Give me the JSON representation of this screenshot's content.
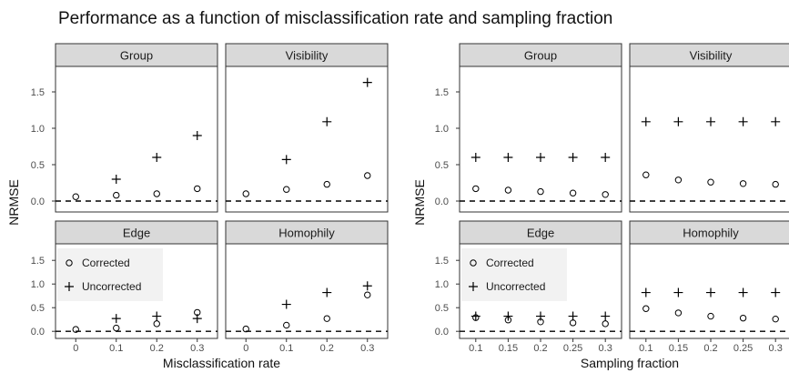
{
  "title": "Performance as a function of misclassification rate and sampling fraction",
  "chart_data": [
    {
      "type": "scatter",
      "xlabel": "Misclassification rate",
      "ylabel": "NRMSE",
      "x": [
        "0",
        "0.1",
        "0.2",
        "0.3"
      ],
      "ylim": [
        -0.15,
        1.85
      ],
      "yticks": [
        "0.0",
        "0.5",
        "1.0",
        "1.5"
      ],
      "reference_line": {
        "y": 0,
        "style": "dashed"
      },
      "grid": false,
      "legend": {
        "position": "inside Edge facet, top-left",
        "entries": [
          {
            "name": "Corrected",
            "marker": "circle"
          },
          {
            "name": "Uncorrected",
            "marker": "plus"
          }
        ]
      },
      "facets": [
        {
          "label": "Group",
          "series": [
            {
              "name": "Corrected",
              "values": [
                0.06,
                0.08,
                0.1,
                0.17
              ]
            },
            {
              "name": "Uncorrected",
              "values": [
                null,
                0.3,
                0.6,
                0.9
              ]
            }
          ]
        },
        {
          "label": "Visibility",
          "series": [
            {
              "name": "Corrected",
              "values": [
                0.1,
                0.16,
                0.23,
                0.35
              ]
            },
            {
              "name": "Uncorrected",
              "values": [
                null,
                0.57,
                1.09,
                1.63
              ]
            }
          ]
        },
        {
          "label": "Edge",
          "series": [
            {
              "name": "Corrected",
              "values": [
                0.04,
                0.07,
                0.16,
                0.4
              ]
            },
            {
              "name": "Uncorrected",
              "values": [
                null,
                0.27,
                0.32,
                0.27
              ]
            }
          ]
        },
        {
          "label": "Homophily",
          "series": [
            {
              "name": "Corrected",
              "values": [
                0.05,
                0.13,
                0.27,
                0.77
              ]
            },
            {
              "name": "Uncorrected",
              "values": [
                null,
                0.57,
                0.82,
                0.96
              ]
            }
          ]
        }
      ]
    },
    {
      "type": "scatter",
      "xlabel": "Sampling fraction",
      "ylabel": "NRMSE",
      "x": [
        "0.1",
        "0.15",
        "0.2",
        "0.25",
        "0.3"
      ],
      "ylim": [
        -0.15,
        1.85
      ],
      "yticks": [
        "0.0",
        "0.5",
        "1.0",
        "1.5"
      ],
      "reference_line": {
        "y": 0,
        "style": "dashed"
      },
      "grid": false,
      "legend": {
        "position": "inside Edge facet, top-left",
        "entries": [
          {
            "name": "Corrected",
            "marker": "circle"
          },
          {
            "name": "Uncorrected",
            "marker": "plus"
          }
        ]
      },
      "facets": [
        {
          "label": "Group",
          "series": [
            {
              "name": "Corrected",
              "values": [
                0.17,
                0.15,
                0.13,
                0.11,
                0.09
              ]
            },
            {
              "name": "Uncorrected",
              "values": [
                0.6,
                0.6,
                0.6,
                0.6,
                0.6
              ]
            }
          ]
        },
        {
          "label": "Visibility",
          "series": [
            {
              "name": "Corrected",
              "values": [
                0.36,
                0.29,
                0.26,
                0.24,
                0.23
              ]
            },
            {
              "name": "Uncorrected",
              "values": [
                1.09,
                1.09,
                1.09,
                1.09,
                1.09
              ]
            }
          ]
        },
        {
          "label": "Edge",
          "series": [
            {
              "name": "Corrected",
              "values": [
                0.29,
                0.24,
                0.2,
                0.18,
                0.16
              ]
            },
            {
              "name": "Uncorrected",
              "values": [
                0.32,
                0.32,
                0.32,
                0.32,
                0.32
              ]
            }
          ]
        },
        {
          "label": "Homophily",
          "series": [
            {
              "name": "Corrected",
              "values": [
                0.48,
                0.39,
                0.32,
                0.28,
                0.26
              ]
            },
            {
              "name": "Uncorrected",
              "values": [
                0.82,
                0.82,
                0.82,
                0.82,
                0.82
              ]
            }
          ]
        }
      ]
    }
  ]
}
